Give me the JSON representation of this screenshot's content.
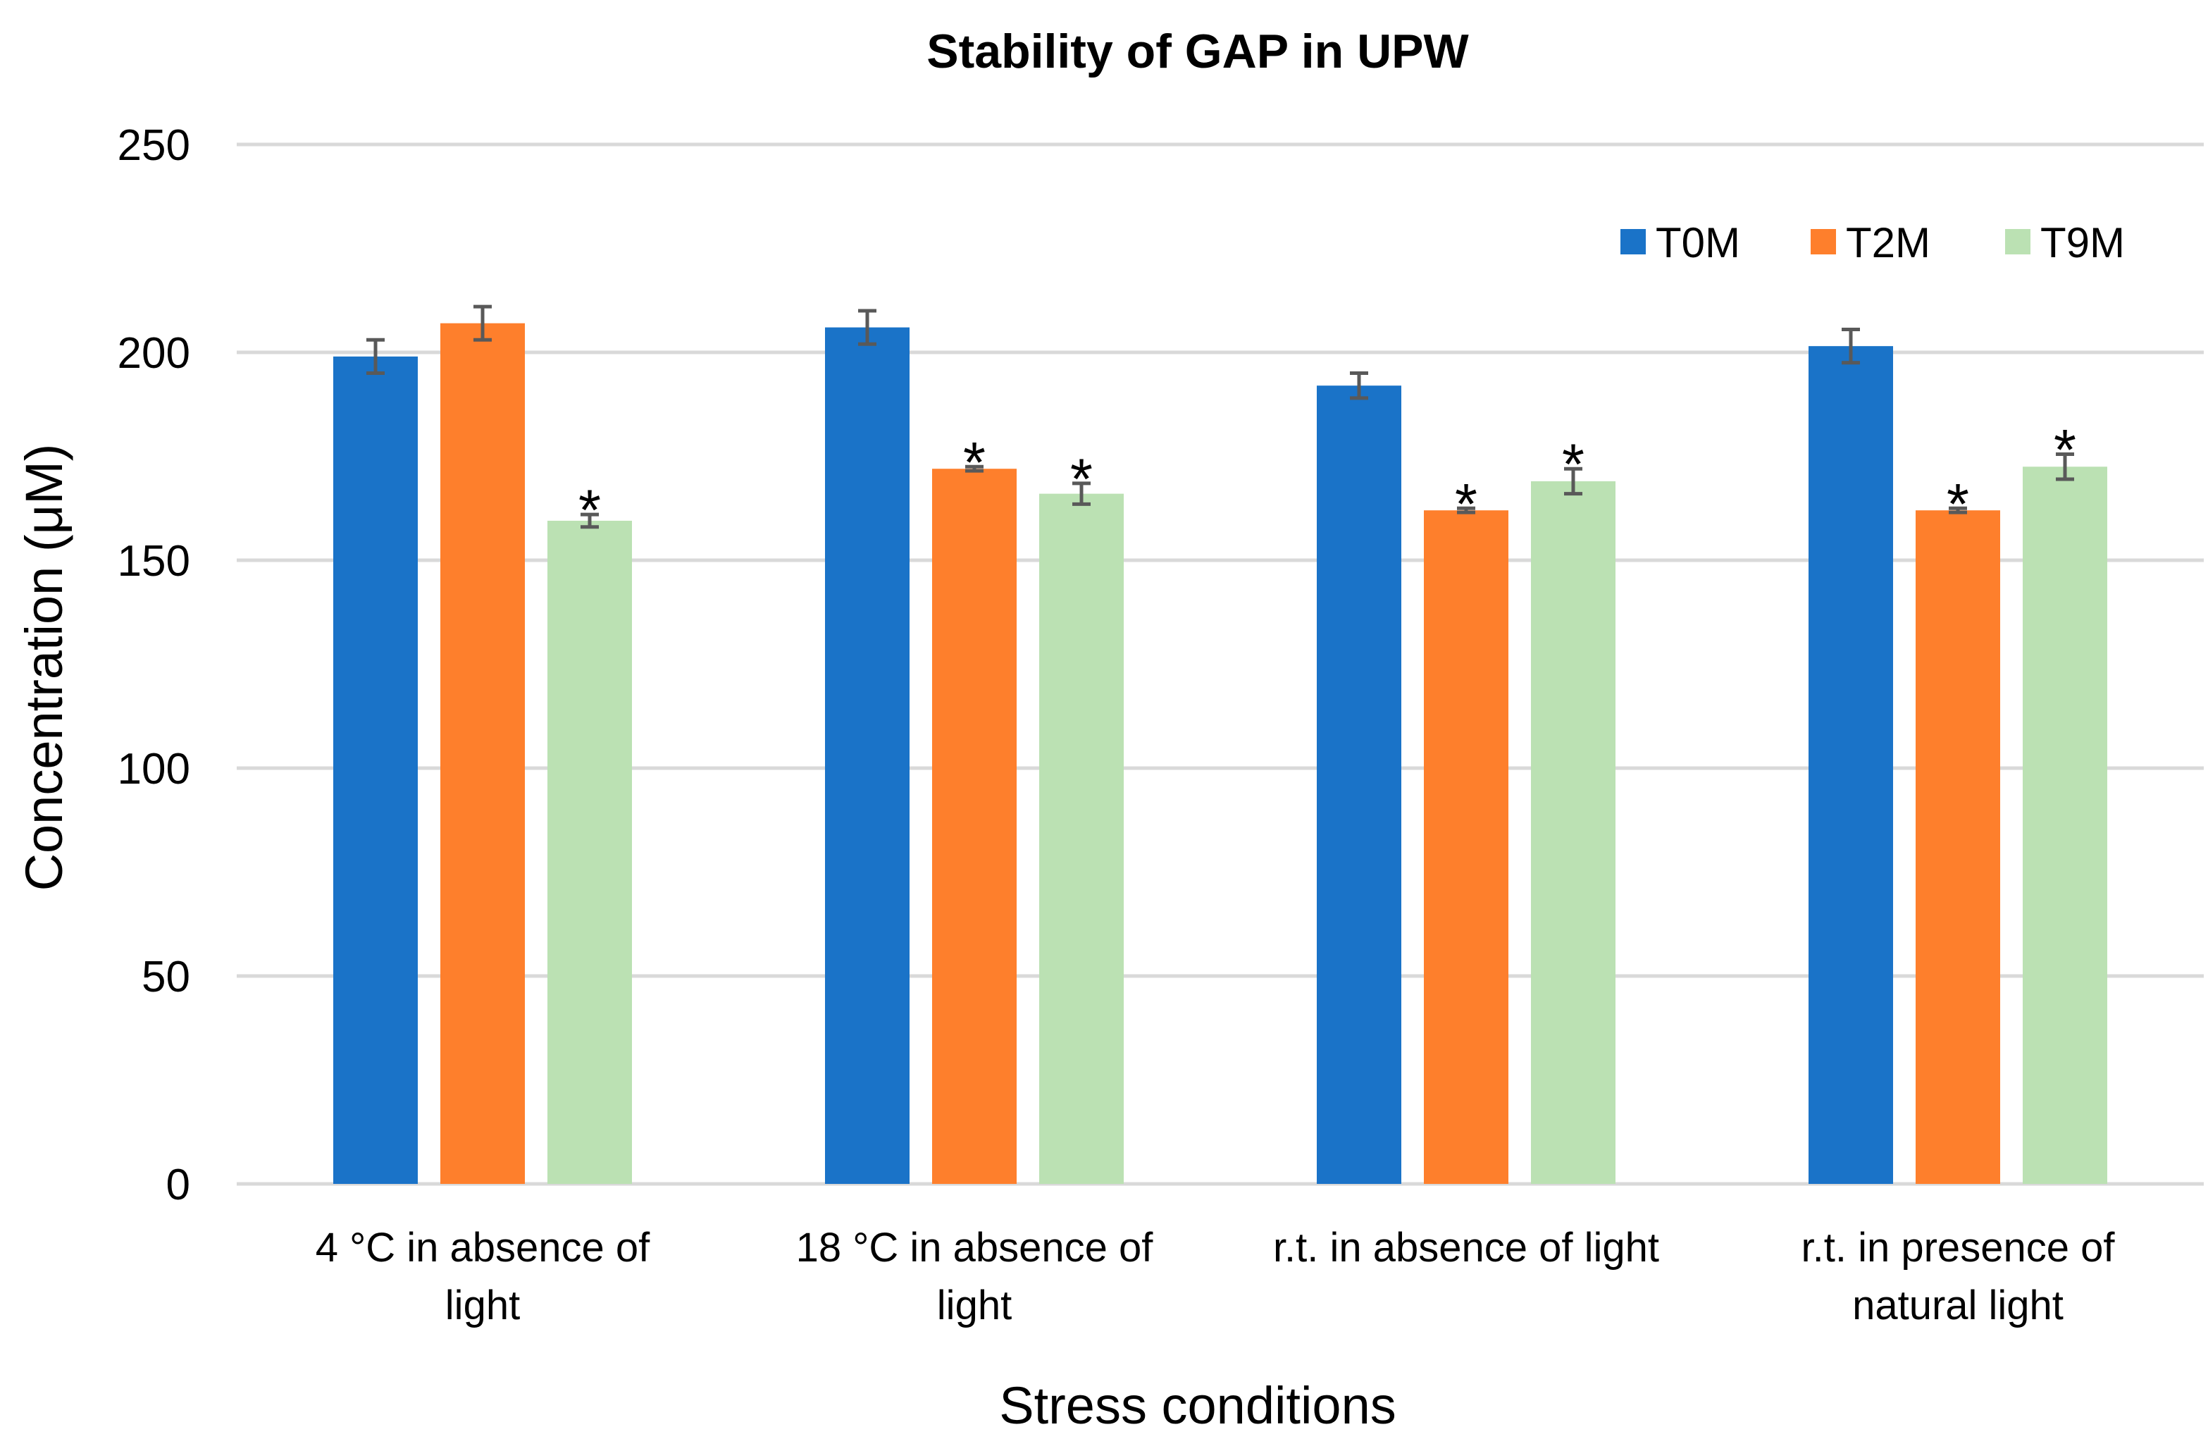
{
  "chart_data": {
    "type": "bar",
    "title": "Stability of GAP in UPW",
    "xlabel": "Stress conditions",
    "ylabel": "Concentration  (μM)",
    "ylim": [
      0,
      250
    ],
    "yticks": [
      0,
      50,
      100,
      150,
      200,
      250
    ],
    "grid": true,
    "legend_position": "top-right",
    "categories": [
      [
        "4 °C in absence of",
        "light"
      ],
      [
        "18 °C in absence of",
        "light"
      ],
      [
        "r.t. in absence of light"
      ],
      [
        "r.t. in presence of",
        "natural light"
      ]
    ],
    "series": [
      {
        "name": "T0M",
        "color": "#1a73c8",
        "values": [
          199,
          206,
          192,
          201.5
        ],
        "errors": [
          4,
          4,
          3,
          4
        ],
        "significant": [
          false,
          false,
          false,
          false
        ]
      },
      {
        "name": "T2M",
        "color": "#fe7f2c",
        "values": [
          207,
          172,
          162,
          162
        ],
        "errors": [
          4,
          0.5,
          0.5,
          0.5
        ],
        "significant": [
          false,
          true,
          true,
          true
        ]
      },
      {
        "name": "T9M",
        "color": "#bbe1b3",
        "values": [
          159.5,
          166,
          169,
          172.5
        ],
        "errors": [
          1.5,
          2.5,
          3,
          3
        ],
        "significant": [
          true,
          true,
          true,
          true
        ]
      }
    ],
    "significance_marker": "*"
  }
}
